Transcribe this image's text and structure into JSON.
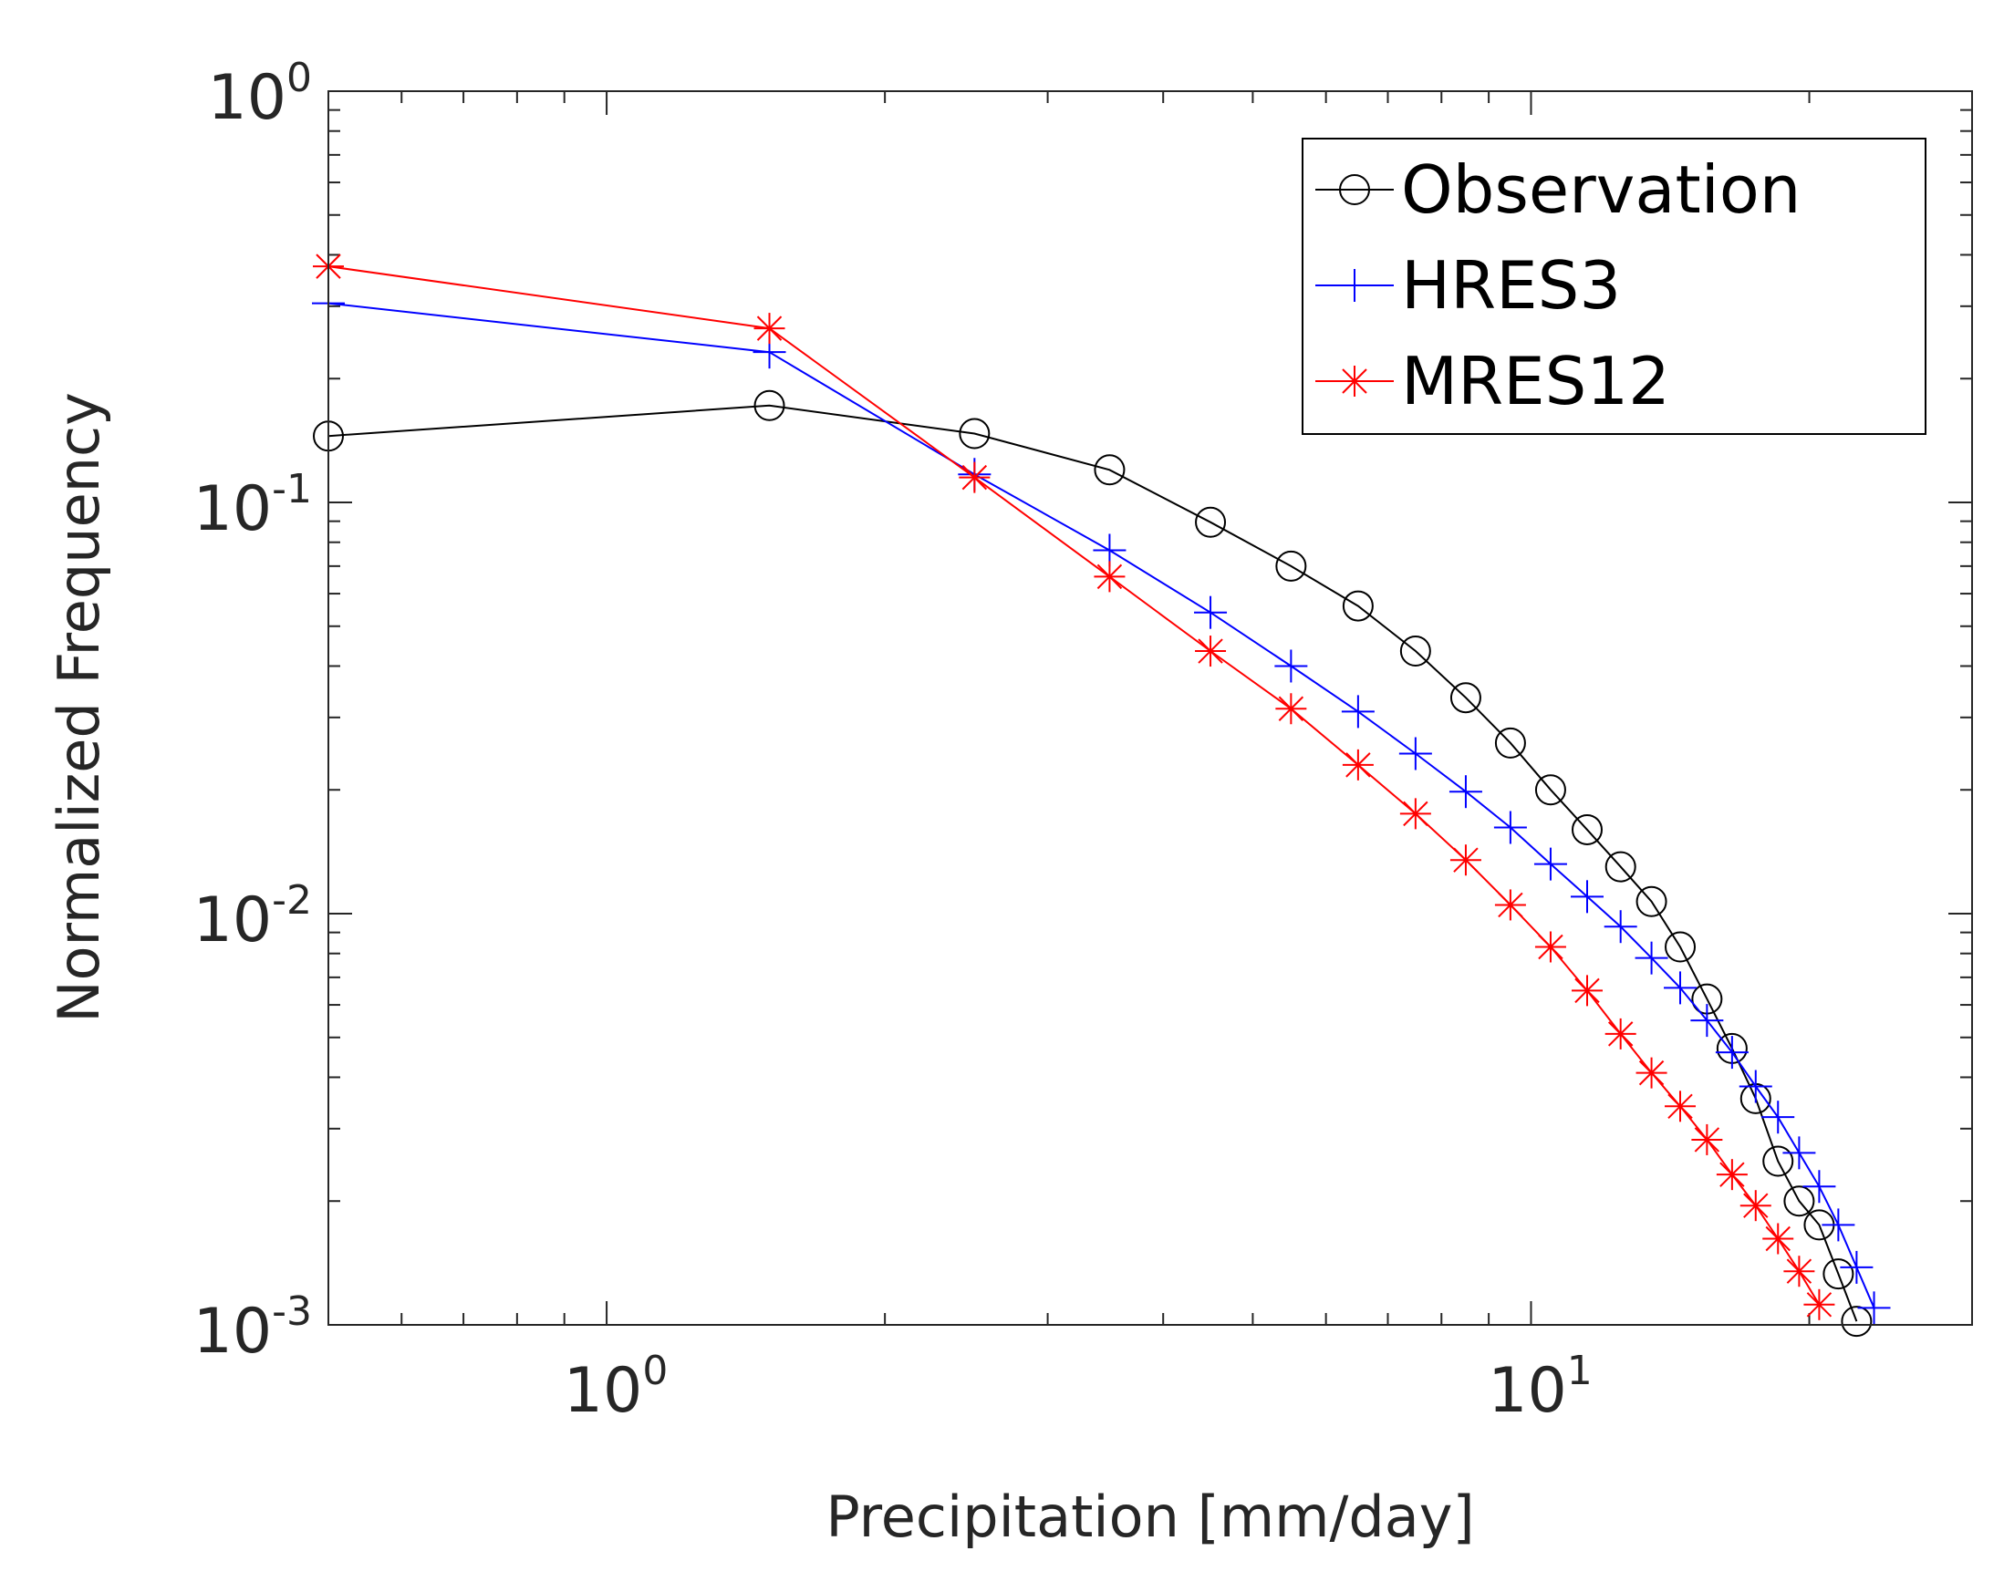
{
  "chart_data": {
    "type": "line",
    "xscale": "log",
    "yscale": "log",
    "xlabel": "Precipitation [mm/day]",
    "ylabel": "Normalized Frequency",
    "xlim": [
      0.5,
      30
    ],
    "ylim": [
      0.001,
      1
    ],
    "x_ticks": [
      {
        "value": 1,
        "base": "10",
        "exp": "0"
      },
      {
        "value": 10,
        "base": "10",
        "exp": "1"
      }
    ],
    "y_ticks": [
      {
        "value": 1,
        "base": "10",
        "exp": "0"
      },
      {
        "value": 0.1,
        "base": "10",
        "exp": "-1"
      },
      {
        "value": 0.01,
        "base": "10",
        "exp": "-2"
      },
      {
        "value": 0.001,
        "base": "10",
        "exp": "-3"
      }
    ],
    "legend_position": "top-right",
    "series": [
      {
        "name": "Observation",
        "color": "#000000",
        "marker": "circle",
        "x": [
          0.5,
          1.5,
          2.5,
          3.5,
          4.5,
          5.5,
          6.5,
          7.5,
          8.5,
          9.5,
          10.5,
          11.5,
          12.5,
          13.5,
          14.5,
          15.5,
          16.5,
          17.5,
          18.5,
          19.5,
          20.5,
          21.5,
          22.5
        ],
        "y": [
          0.145,
          0.172,
          0.147,
          0.12,
          0.0895,
          0.07,
          0.056,
          0.0435,
          0.0335,
          0.026,
          0.02,
          0.016,
          0.013,
          0.0107,
          0.0083,
          0.0062,
          0.0047,
          0.00355,
          0.0025,
          0.002,
          0.00175,
          0.00133,
          0.00102
        ]
      },
      {
        "name": "HRES3",
        "color": "#0000ff",
        "marker": "plus",
        "x": [
          0.5,
          1.5,
          2.5,
          3.5,
          4.5,
          5.5,
          6.5,
          7.5,
          8.5,
          9.5,
          10.5,
          11.5,
          12.5,
          13.5,
          14.5,
          15.5,
          16.5,
          17.5,
          18.5,
          19.5,
          20.5,
          21.5,
          22.5,
          23.5
        ],
        "y": [
          0.305,
          0.232,
          0.117,
          0.0765,
          0.054,
          0.04,
          0.031,
          0.0245,
          0.0198,
          0.0162,
          0.0132,
          0.011,
          0.0093,
          0.0078,
          0.0066,
          0.0055,
          0.0046,
          0.0038,
          0.0032,
          0.00262,
          0.00217,
          0.00175,
          0.00138,
          0.0011
        ]
      },
      {
        "name": "MRES12",
        "color": "#ff0000",
        "marker": "asterisk",
        "x": [
          0.5,
          1.5,
          2.5,
          3.5,
          4.5,
          5.5,
          6.5,
          7.5,
          8.5,
          9.5,
          10.5,
          11.5,
          12.5,
          13.5,
          14.5,
          15.5,
          16.5,
          17.5,
          18.5,
          19.5,
          20.5
        ],
        "y": [
          0.375,
          0.265,
          0.115,
          0.066,
          0.0435,
          0.0315,
          0.023,
          0.0175,
          0.0135,
          0.0105,
          0.0083,
          0.0065,
          0.0051,
          0.0041,
          0.0034,
          0.00282,
          0.00232,
          0.00195,
          0.00162,
          0.00135,
          0.00112
        ]
      }
    ]
  }
}
